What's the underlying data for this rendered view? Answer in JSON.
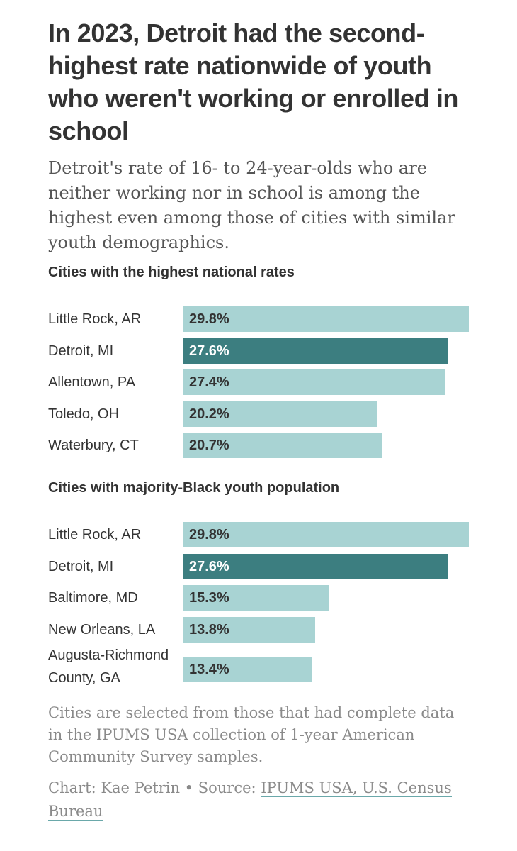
{
  "header": {
    "title": "In 2023, Detroit had the second-highest rate nationwide of youth who weren't working or enrolled in school",
    "subtitle": "Detroit's rate of 16- to 24-year-olds who are neither working nor in school is among the highest even among those of cities with similar youth demographics."
  },
  "chart_data": [
    {
      "type": "bar",
      "orientation": "horizontal",
      "title": "Cities with the highest national rates",
      "categories": [
        "Little Rock, AR",
        "Detroit, MI",
        "Allentown, PA",
        "Toledo, OH",
        "Waterbury, CT"
      ],
      "values": [
        29.8,
        27.6,
        27.4,
        20.2,
        20.7
      ],
      "labels": [
        "29.8%",
        "27.6%",
        "27.4%",
        "20.2%",
        "20.7%"
      ],
      "highlight": "Detroit, MI",
      "xlim": [
        0,
        29.8
      ],
      "grid": false,
      "colors": {
        "default": "#a8d3d3",
        "highlight": "#3c7e80"
      }
    },
    {
      "type": "bar",
      "orientation": "horizontal",
      "title": "Cities with majority-Black youth population",
      "categories": [
        "Little Rock, AR",
        "Detroit, MI",
        "Baltimore, MD",
        "New Orleans, LA",
        "Augusta-Richmond County, GA"
      ],
      "values": [
        29.8,
        27.6,
        15.3,
        13.8,
        13.4
      ],
      "labels": [
        "29.8%",
        "27.6%",
        "15.3%",
        "13.8%",
        "13.4%"
      ],
      "highlight": "Detroit, MI",
      "xlim": [
        0,
        29.8
      ],
      "grid": false,
      "colors": {
        "default": "#a8d3d3",
        "highlight": "#3c7e80"
      }
    }
  ],
  "footer": {
    "notes": "Cities are selected from those that had complete data in the IPUMS USA collection of 1-year American Community Survey samples.",
    "credit_prefix": "Chart: Kae Petrin • Source: ",
    "source_link": "IPUMS USA, U.S. Census Bureau"
  }
}
